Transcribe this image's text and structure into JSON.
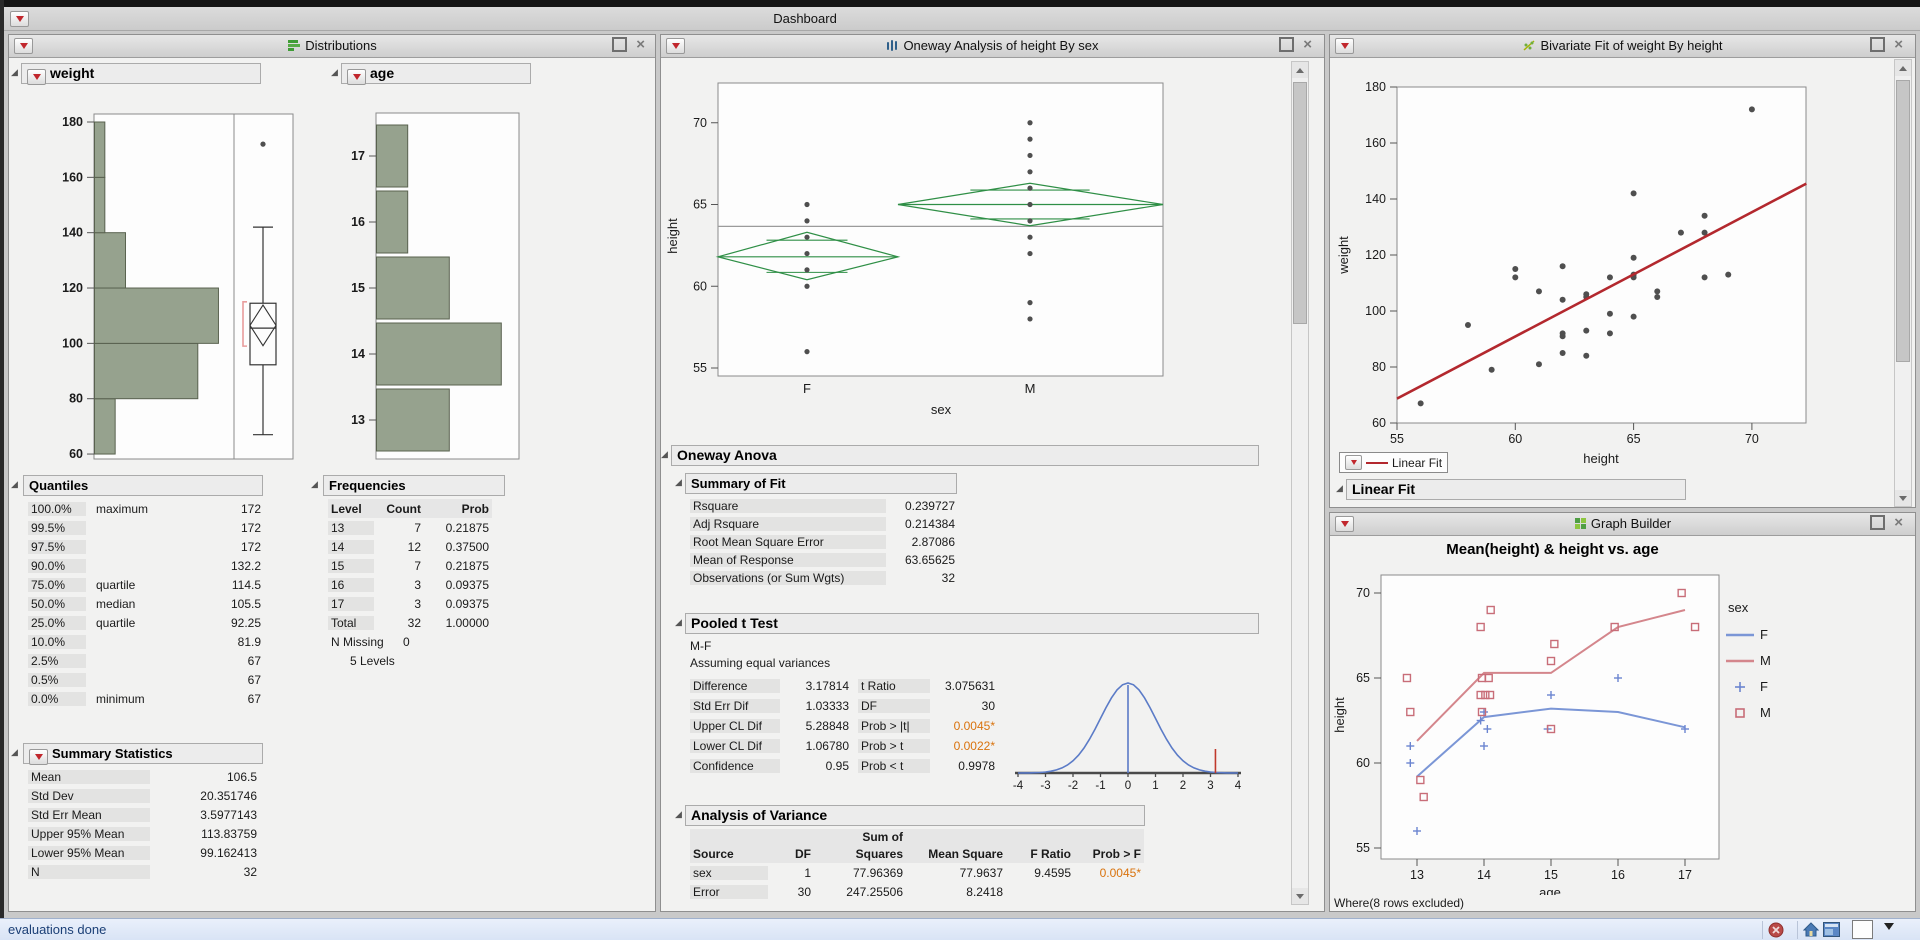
{
  "window": {
    "title": "Dashboard"
  },
  "status_bar": {
    "text": "evaluations done"
  },
  "colors": {
    "hist_fill": "#96a28e",
    "hist_stroke": "#59624f",
    "diamond_green": "#2f8f46",
    "fit_red": "#b3282e",
    "curve_blue": "#5b7bc7",
    "orange_p": "#d9730d",
    "gb_f_line": "#7b96d6",
    "gb_m_line": "#d4868c",
    "gb_f_marker": "#6b85d0",
    "gb_m_marker": "#c86d78",
    "dot_gray": "#4f4f4f",
    "bracket_red": "#e89c9c"
  },
  "panels": {
    "distributions": {
      "title": "Distributions",
      "weight": {
        "label": "weight"
      },
      "age": {
        "label": "age"
      },
      "quantiles": {
        "title": "Quantiles",
        "rows": [
          [
            "100.0%",
            "maximum",
            "172"
          ],
          [
            "99.5%",
            "",
            "172"
          ],
          [
            "97.5%",
            "",
            "172"
          ],
          [
            "90.0%",
            "",
            "132.2"
          ],
          [
            "75.0%",
            "quartile",
            "114.5"
          ],
          [
            "50.0%",
            "median",
            "105.5"
          ],
          [
            "25.0%",
            "quartile",
            "92.25"
          ],
          [
            "10.0%",
            "",
            "81.9"
          ],
          [
            "2.5%",
            "",
            "67"
          ],
          [
            "0.5%",
            "",
            "67"
          ],
          [
            "0.0%",
            "minimum",
            "67"
          ]
        ]
      },
      "frequencies": {
        "title": "Frequencies",
        "columns": [
          "Level",
          "Count",
          "Prob"
        ],
        "rows": [
          [
            "13",
            "7",
            "0.21875"
          ],
          [
            "14",
            "12",
            "0.37500"
          ],
          [
            "15",
            "7",
            "0.21875"
          ],
          [
            "16",
            "3",
            "0.09375"
          ],
          [
            "17",
            "3",
            "0.09375"
          ],
          [
            "Total",
            "32",
            "1.00000"
          ]
        ],
        "n_missing_label": "N Missing",
        "n_missing_value": "0",
        "levels_text": "5 Levels"
      },
      "summary_statistics": {
        "title": "Summary Statistics",
        "rows": [
          [
            "Mean",
            "106.5"
          ],
          [
            "Std Dev",
            "20.351746"
          ],
          [
            "Std Err Mean",
            "3.5977143"
          ],
          [
            "Upper 95% Mean",
            "113.83759"
          ],
          [
            "Lower 95% Mean",
            "99.162413"
          ],
          [
            "N",
            "32"
          ]
        ]
      }
    },
    "oneway": {
      "title": "Oneway Analysis of height By sex",
      "anova_title": "Oneway Anova",
      "summary_of_fit": {
        "title": "Summary of Fit",
        "rows": [
          [
            "Rsquare",
            "0.239727"
          ],
          [
            "Adj Rsquare",
            "0.214384"
          ],
          [
            "Root Mean Square Error",
            "2.87086"
          ],
          [
            "Mean of Response",
            "63.65625"
          ],
          [
            "Observations (or Sum Wgts)",
            "32"
          ]
        ]
      },
      "pooled_t_test": {
        "title": "Pooled t Test",
        "subtitle1": "M-F",
        "subtitle2": "Assuming equal variances",
        "left_rows": [
          [
            "Difference",
            "3.17814"
          ],
          [
            "Std Err Dif",
            "1.03333"
          ],
          [
            "Upper CL Dif",
            "5.28848"
          ],
          [
            "Lower CL Dif",
            "1.06780"
          ],
          [
            "Confidence",
            "0.95"
          ]
        ],
        "right_rows": [
          [
            "t Ratio",
            "3.075631",
            false
          ],
          [
            "DF",
            "30",
            false
          ],
          [
            "Prob > |t|",
            "0.0045*",
            true
          ],
          [
            "Prob > t",
            "0.0022*",
            true
          ],
          [
            "Prob < t",
            "0.9978",
            false
          ]
        ]
      },
      "aov": {
        "title": "Analysis of Variance",
        "header_line1": "Sum of",
        "columns": [
          "Source",
          "DF",
          "Squares",
          "Mean Square",
          "F Ratio",
          "Prob > F"
        ],
        "rows": [
          [
            "sex",
            "1",
            "77.96369",
            "77.9637",
            "9.4595",
            "0.0045*"
          ],
          [
            "Error",
            "30",
            "247.25506",
            "8.2418",
            "",
            ""
          ]
        ]
      }
    },
    "bivariate": {
      "title": "Bivariate Fit of weight By height",
      "legend_label": "Linear Fit",
      "section_title": "Linear Fit"
    },
    "graph_builder": {
      "title": "Graph Builder",
      "chart_title": "Mean(height) & height vs. age",
      "note": "Where(8 rows excluded)",
      "legend": {
        "title": "sex",
        "items": [
          {
            "label": "F",
            "marker": "line",
            "color": "#7b96d6"
          },
          {
            "label": "M",
            "marker": "line",
            "color": "#d4868c"
          },
          {
            "label": "F",
            "marker": "plus",
            "color": "#6b85d0"
          },
          {
            "label": "M",
            "marker": "square",
            "color": "#c86d78"
          }
        ]
      }
    }
  },
  "chart_data": [
    {
      "id": "weight_histogram",
      "type": "bar",
      "orientation": "horizontal",
      "title": "weight",
      "ylim": [
        60,
        180
      ],
      "yticks": [
        180,
        160,
        140,
        120,
        100,
        80,
        60
      ],
      "bins": [
        {
          "range": [
            60,
            80
          ],
          "count": 2
        },
        {
          "range": [
            80,
            100
          ],
          "count": 10
        },
        {
          "range": [
            100,
            120
          ],
          "count": 12
        },
        {
          "range": [
            120,
            140
          ],
          "count": 3
        },
        {
          "range": [
            140,
            160
          ],
          "count": 1
        },
        {
          "range": [
            160,
            180
          ],
          "count": 1
        }
      ]
    },
    {
      "id": "weight_boxplot",
      "type": "boxplot",
      "min": 67,
      "q1": 92.25,
      "median": 105.5,
      "q3": 114.5,
      "whisker_high": 142,
      "outliers": [
        172
      ],
      "mean": 106.5,
      "mean_ci": [
        99.162413,
        113.83759
      ],
      "shortest_half": [
        99,
        115
      ]
    },
    {
      "id": "age_histogram",
      "type": "bar",
      "orientation": "horizontal",
      "title": "age",
      "categories": [
        17,
        16,
        15,
        14,
        13
      ],
      "values": [
        3,
        3,
        7,
        12,
        7
      ]
    },
    {
      "id": "oneway_plot",
      "type": "scatter",
      "ylabel": "height",
      "xlabel": "sex",
      "categories": [
        "F",
        "M"
      ],
      "ylim": [
        55,
        72.5
      ],
      "yticks": [
        55,
        60,
        65,
        70
      ],
      "grand_mean": 63.66,
      "F_values": [
        65,
        64,
        63,
        62,
        61,
        60,
        56
      ],
      "M_values": [
        70,
        69,
        68,
        67,
        66,
        65,
        64,
        63,
        62,
        59,
        58
      ],
      "diamonds": {
        "F": {
          "mean": 61.8,
          "ci": [
            60.4,
            63.3
          ]
        },
        "M": {
          "mean": 65.0,
          "ci": [
            63.7,
            66.3
          ]
        }
      }
    },
    {
      "id": "t_curve",
      "type": "line",
      "xlim": [
        -4,
        4
      ],
      "xticks": [
        -4,
        -3,
        -2,
        -1,
        0,
        1,
        2,
        3,
        4
      ],
      "marker_x": 3.18
    },
    {
      "id": "bivariate_scatter",
      "type": "scatter",
      "xlabel": "height",
      "ylabel": "weight",
      "xlim": [
        55,
        72.5
      ],
      "ylim": [
        60,
        180
      ],
      "xticks": [
        55,
        60,
        65,
        70
      ],
      "yticks": [
        180,
        160,
        140,
        120,
        100,
        80,
        60
      ],
      "points": [
        [
          56,
          67
        ],
        [
          58,
          95
        ],
        [
          59,
          79
        ],
        [
          60,
          115
        ],
        [
          60,
          112
        ],
        [
          61,
          107
        ],
        [
          61,
          81
        ],
        [
          62,
          116
        ],
        [
          62,
          104
        ],
        [
          62,
          92
        ],
        [
          62,
          91
        ],
        [
          62,
          85
        ],
        [
          63,
          106
        ],
        [
          63,
          105
        ],
        [
          63,
          93
        ],
        [
          63,
          84
        ],
        [
          64,
          112
        ],
        [
          64,
          99
        ],
        [
          64,
          92
        ],
        [
          65,
          142
        ],
        [
          65,
          119
        ],
        [
          65,
          113
        ],
        [
          65,
          112
        ],
        [
          65,
          98
        ],
        [
          66,
          107
        ],
        [
          66,
          105
        ],
        [
          67,
          128
        ],
        [
          68,
          134
        ],
        [
          68,
          128
        ],
        [
          68,
          112
        ],
        [
          69,
          113
        ],
        [
          70,
          172
        ]
      ],
      "fit_line": {
        "x1": 55,
        "y1": 68.7,
        "x2": 72.3,
        "y2": 145.5
      }
    },
    {
      "id": "graph_builder_chart",
      "type": "line",
      "title": "Mean(height) & height vs. age",
      "xlabel": "age",
      "ylabel": "height",
      "xticks": [
        13,
        14,
        15,
        16,
        17
      ],
      "yticks": [
        70,
        65,
        60,
        55
      ],
      "ylim": [
        53,
        71.5
      ],
      "series": [
        {
          "name": "F",
          "kind": "line",
          "points": [
            [
              13,
              59.2
            ],
            [
              14,
              62.7
            ],
            [
              15,
              63.2
            ],
            [
              16,
              63.0
            ],
            [
              17,
              62.1
            ]
          ]
        },
        {
          "name": "M",
          "kind": "line",
          "points": [
            [
              13,
              61.3
            ],
            [
              14,
              65.3
            ],
            [
              15,
              65.3
            ],
            [
              16,
              68.0
            ],
            [
              17,
              69.0
            ]
          ]
        },
        {
          "name": "F",
          "kind": "points",
          "marker": "plus",
          "points": [
            [
              12.9,
              61
            ],
            [
              12.9,
              60
            ],
            [
              13,
              56
            ],
            [
              14,
              63
            ],
            [
              13.95,
              62.5
            ],
            [
              14.05,
              62
            ],
            [
              14,
              61
            ],
            [
              15,
              64
            ],
            [
              14.95,
              62
            ],
            [
              16,
              65
            ],
            [
              17,
              62
            ]
          ]
        },
        {
          "name": "M",
          "kind": "points",
          "marker": "square",
          "points": [
            [
              12.85,
              65
            ],
            [
              12.9,
              63
            ],
            [
              13.05,
              59
            ],
            [
              13.1,
              58
            ],
            [
              14.1,
              69
            ],
            [
              13.95,
              68
            ],
            [
              13.97,
              65
            ],
            [
              14.07,
              65
            ],
            [
              13.95,
              64
            ],
            [
              14.02,
              64
            ],
            [
              14.09,
              64
            ],
            [
              13.97,
              63
            ],
            [
              15.05,
              67
            ],
            [
              15,
              66
            ],
            [
              15,
              62
            ],
            [
              15.95,
              68
            ],
            [
              16.95,
              70
            ],
            [
              17.15,
              68
            ]
          ]
        }
      ]
    }
  ]
}
